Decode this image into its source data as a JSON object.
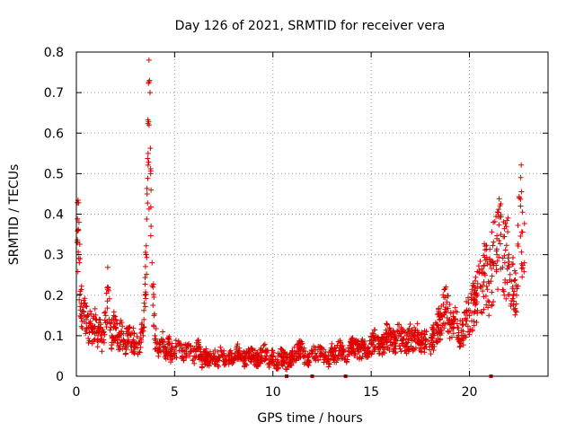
{
  "chart_data": {
    "type": "scatter",
    "title": "Day 126 of 2021, SRMTID for receiver vera",
    "xlabel": "GPS time / hours",
    "ylabel": "SRMTID / TECUs",
    "xlim": [
      0,
      24
    ],
    "ylim": [
      0,
      0.8
    ],
    "xticks": [
      0,
      5,
      10,
      15,
      20
    ],
    "xtick_labels": [
      "0",
      "5",
      "10",
      "15",
      "20"
    ],
    "yticks": [
      0,
      0.1,
      0.2,
      0.3,
      0.4,
      0.5,
      0.6,
      0.7,
      0.8
    ],
    "ytick_labels": [
      "0",
      "0.1",
      "0.2",
      "0.3",
      "0.4",
      "0.5",
      "0.6",
      "0.7",
      "0.8"
    ],
    "grid": true,
    "marker": "+",
    "series_color": "#dd0000",
    "series": [
      {
        "name": "SRMTID",
        "x": [
          0.05,
          0.1,
          0.15,
          0.2,
          0.25,
          0.3,
          0.4,
          0.5,
          0.6,
          0.7,
          0.8,
          0.9,
          1.0,
          1.1,
          1.2,
          1.3,
          1.4,
          1.5,
          1.6,
          1.7,
          1.8,
          1.9,
          2.0,
          2.1,
          2.2,
          2.3,
          2.4,
          2.5,
          2.6,
          2.7,
          2.8,
          2.9,
          3.0,
          3.1,
          3.2,
          3.3,
          3.4,
          3.5,
          3.55,
          3.6,
          3.65,
          3.7,
          3.72,
          3.75,
          3.78,
          3.8,
          3.85,
          3.9,
          3.95,
          4.0,
          4.1,
          4.2,
          4.3,
          4.4,
          4.5,
          4.6,
          4.7,
          4.8,
          4.9,
          5.0,
          5.2,
          5.4,
          5.6,
          5.8,
          6.0,
          6.2,
          6.4,
          6.6,
          6.8,
          7.0,
          7.2,
          7.4,
          7.6,
          7.8,
          8.0,
          8.2,
          8.4,
          8.6,
          8.8,
          9.0,
          9.2,
          9.4,
          9.6,
          9.8,
          10.0,
          10.2,
          10.4,
          10.6,
          10.8,
          11.0,
          11.2,
          11.4,
          11.6,
          11.8,
          12.0,
          12.2,
          12.4,
          12.6,
          12.8,
          13.0,
          13.2,
          13.4,
          13.6,
          13.8,
          14.0,
          14.2,
          14.4,
          14.6,
          14.8,
          15.0,
          15.2,
          15.4,
          15.6,
          15.8,
          16.0,
          16.2,
          16.4,
          16.6,
          16.8,
          17.0,
          17.2,
          17.4,
          17.6,
          17.8,
          18.0,
          18.2,
          18.4,
          18.6,
          18.8,
          19.0,
          19.2,
          19.4,
          19.6,
          19.8,
          20.0,
          20.2,
          20.4,
          20.6,
          20.8,
          21.0,
          21.2,
          21.4,
          21.6,
          21.8,
          22.0,
          22.2,
          22.4,
          22.6,
          22.8
        ],
        "y": [
          0.33,
          0.36,
          0.28,
          0.21,
          0.18,
          0.16,
          0.15,
          0.14,
          0.12,
          0.13,
          0.11,
          0.12,
          0.14,
          0.1,
          0.12,
          0.09,
          0.11,
          0.15,
          0.22,
          0.13,
          0.1,
          0.12,
          0.14,
          0.09,
          0.1,
          0.11,
          0.09,
          0.08,
          0.1,
          0.12,
          0.08,
          0.09,
          0.07,
          0.08,
          0.06,
          0.09,
          0.12,
          0.2,
          0.3,
          0.45,
          0.55,
          0.62,
          0.73,
          0.7,
          0.5,
          0.37,
          0.28,
          0.22,
          0.15,
          0.1,
          0.08,
          0.07,
          0.06,
          0.09,
          0.07,
          0.06,
          0.08,
          0.05,
          0.07,
          0.06,
          0.08,
          0.05,
          0.07,
          0.06,
          0.05,
          0.07,
          0.04,
          0.05,
          0.04,
          0.05,
          0.04,
          0.06,
          0.03,
          0.05,
          0.04,
          0.06,
          0.05,
          0.04,
          0.06,
          0.05,
          0.04,
          0.05,
          0.06,
          0.04,
          0.05,
          0.03,
          0.05,
          0.04,
          0.03,
          0.05,
          0.06,
          0.07,
          0.05,
          0.04,
          0.06,
          0.05,
          0.06,
          0.05,
          0.04,
          0.06,
          0.05,
          0.07,
          0.06,
          0.05,
          0.07,
          0.08,
          0.06,
          0.07,
          0.06,
          0.08,
          0.09,
          0.07,
          0.08,
          0.1,
          0.09,
          0.08,
          0.1,
          0.09,
          0.08,
          0.1,
          0.09,
          0.1,
          0.08,
          0.09,
          0.08,
          0.1,
          0.12,
          0.15,
          0.17,
          0.14,
          0.13,
          0.12,
          0.1,
          0.14,
          0.15,
          0.18,
          0.2,
          0.22,
          0.25,
          0.23,
          0.28,
          0.3,
          0.35,
          0.28,
          0.3,
          0.22,
          0.2,
          0.42,
          0.28
        ],
        "zero_x": [
          10.7,
          12.0,
          13.7,
          21.1
        ]
      }
    ]
  }
}
